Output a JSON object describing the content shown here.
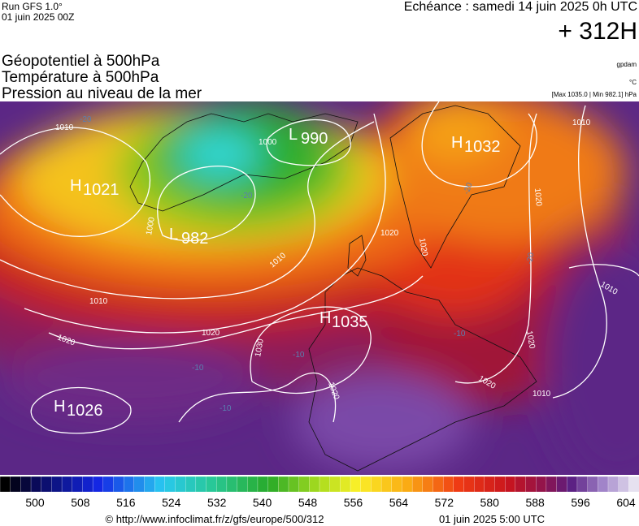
{
  "header": {
    "run": "Run GFS 1.0°",
    "date": "01 juin 2025 00Z",
    "echeance": "Echéance : samedi 14 juin 2025 0h UTC",
    "offset": "+ 312H"
  },
  "legend": {
    "lines": [
      "Géopotentiel à 500hPa",
      "Température à 500hPa",
      "Pression au niveau de la mer"
    ],
    "units": [
      "gpdam",
      "°C",
      "[Max 1035.0 | Min 982.1] hPa"
    ]
  },
  "centers": [
    {
      "letter": "H",
      "pressure": "1021"
    },
    {
      "letter": "L",
      "pressure": "982"
    },
    {
      "letter": "L",
      "pressure": "990"
    },
    {
      "letter": "H",
      "pressure": "1032"
    },
    {
      "letter": "H",
      "pressure": "1035"
    },
    {
      "letter": "H",
      "pressure": "1026"
    }
  ],
  "isobar_labels": [
    "1010",
    "1000",
    "1000",
    "1010",
    "1010",
    "1020",
    "1020",
    "1030",
    "1020",
    "1020",
    "1020",
    "1010",
    "1010",
    "1020",
    "1010",
    "1020",
    "1020"
  ],
  "temperature_labels": [
    "-20",
    "-20",
    "-20",
    "-10",
    "-10",
    "-10",
    "-10",
    "-20"
  ],
  "colorbar": {
    "ticks": [
      500,
      508,
      516,
      524,
      532,
      540,
      548,
      556,
      564,
      572,
      580,
      588,
      596,
      604
    ]
  },
  "footer": {
    "url": "© http://www.infoclimat.fr/z/gfs/europe/500/312",
    "time": "01 juin 2025  5:00 UTC"
  }
}
